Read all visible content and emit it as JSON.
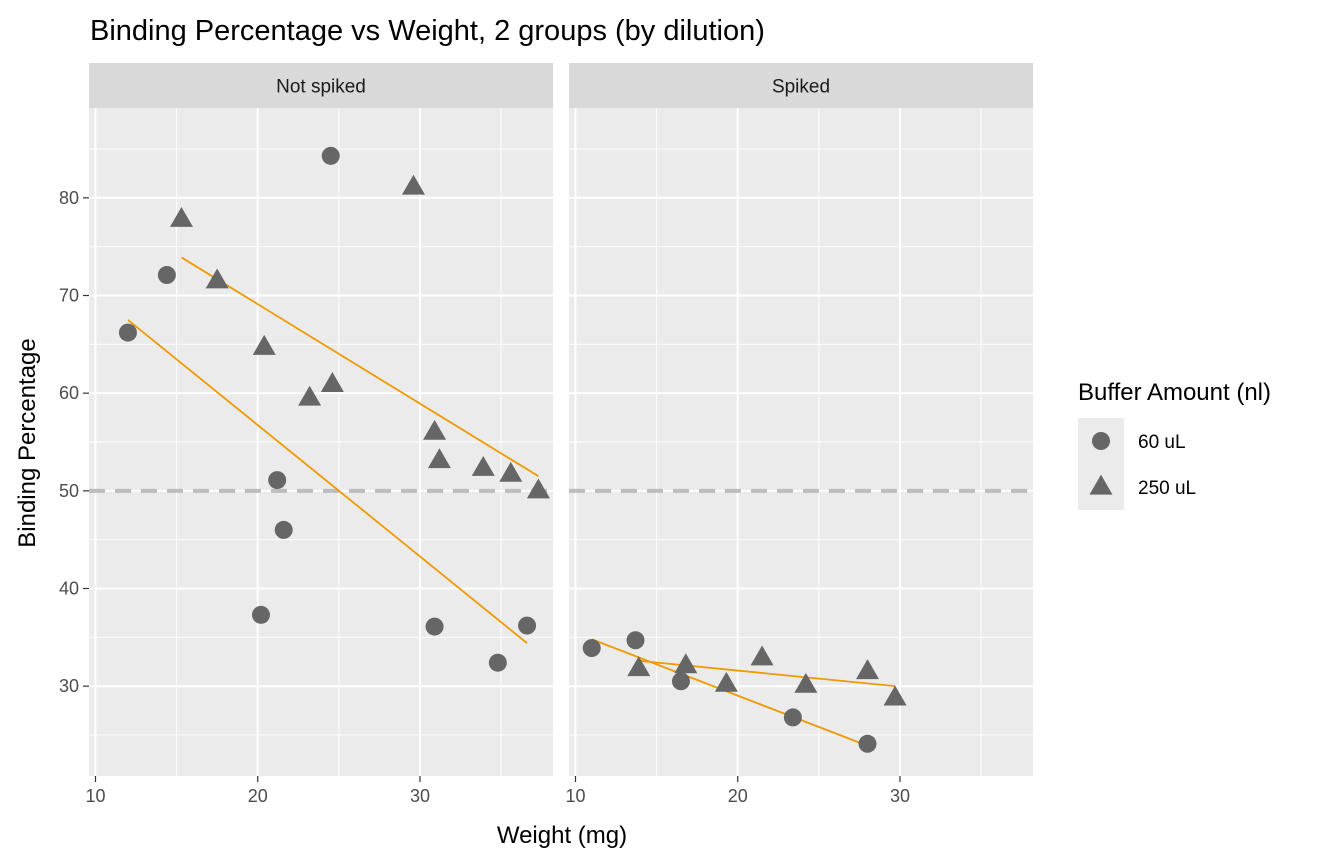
{
  "chart_data": {
    "type": "scatter",
    "title": "Binding Percentage vs Weight, 2 groups (by dilution)",
    "xlabel": "Weight (mg)",
    "ylabel": "Binding Percentage",
    "xlim": [
      9.6,
      38.2
    ],
    "ylim": [
      20.8,
      89.2
    ],
    "x_ticks": [
      10,
      20,
      30
    ],
    "y_ticks": [
      30,
      40,
      50,
      60,
      70,
      80
    ],
    "reference_line": {
      "y": 50,
      "style": "dashed",
      "color": "#bdbdbd"
    },
    "grid": true,
    "legend": {
      "title": "Buffer Amount (nl)",
      "position": "right",
      "entries": [
        {
          "label": "60 uL",
          "shape": "circle"
        },
        {
          "label": "250 uL",
          "shape": "triangle"
        }
      ]
    },
    "colors": {
      "points": "#666666",
      "fit": "#ee9a00",
      "panel": "#ebebeb",
      "strip": "#d9d9d9",
      "grid": "#ffffff"
    },
    "panels": [
      {
        "name": "Not spiked",
        "series": [
          {
            "name": "60 uL",
            "shape": "circle",
            "points": [
              [
                12.0,
                66.2
              ],
              [
                14.4,
                72.1
              ],
              [
                20.2,
                37.3
              ],
              [
                21.2,
                51.1
              ],
              [
                21.6,
                46.0
              ],
              [
                24.5,
                84.3
              ],
              [
                30.9,
                36.1
              ],
              [
                34.8,
                32.4
              ],
              [
                36.6,
                36.2
              ]
            ],
            "fit": [
              [
                12.0,
                67.5
              ],
              [
                36.6,
                34.4
              ]
            ]
          },
          {
            "name": "250 uL",
            "shape": "triangle",
            "points": [
              [
                15.3,
                77.8
              ],
              [
                17.5,
                71.5
              ],
              [
                20.4,
                64.7
              ],
              [
                23.2,
                59.5
              ],
              [
                24.6,
                60.9
              ],
              [
                29.6,
                81.1
              ],
              [
                30.9,
                56.0
              ],
              [
                31.2,
                53.1
              ],
              [
                33.9,
                52.3
              ],
              [
                35.6,
                51.7
              ],
              [
                37.3,
                50.0
              ]
            ],
            "fit": [
              [
                15.3,
                73.9
              ],
              [
                37.3,
                51.5
              ]
            ]
          }
        ]
      },
      {
        "name": "Spiked",
        "series": [
          {
            "name": "60 uL",
            "shape": "circle",
            "points": [
              [
                11.0,
                33.9
              ],
              [
                13.7,
                34.7
              ],
              [
                16.5,
                30.5
              ],
              [
                23.4,
                26.8
              ],
              [
                28.0,
                24.1
              ]
            ],
            "fit": [
              [
                11.0,
                34.8
              ],
              [
                28.0,
                23.9
              ]
            ]
          },
          {
            "name": "250 uL",
            "shape": "triangle",
            "points": [
              [
                13.9,
                31.8
              ],
              [
                16.8,
                32.1
              ],
              [
                19.3,
                30.2
              ],
              [
                21.5,
                32.9
              ],
              [
                24.2,
                30.1
              ],
              [
                28.0,
                31.5
              ],
              [
                29.7,
                28.8
              ]
            ],
            "fit": [
              [
                13.9,
                32.6
              ],
              [
                29.7,
                30.0
              ]
            ]
          }
        ]
      }
    ]
  }
}
